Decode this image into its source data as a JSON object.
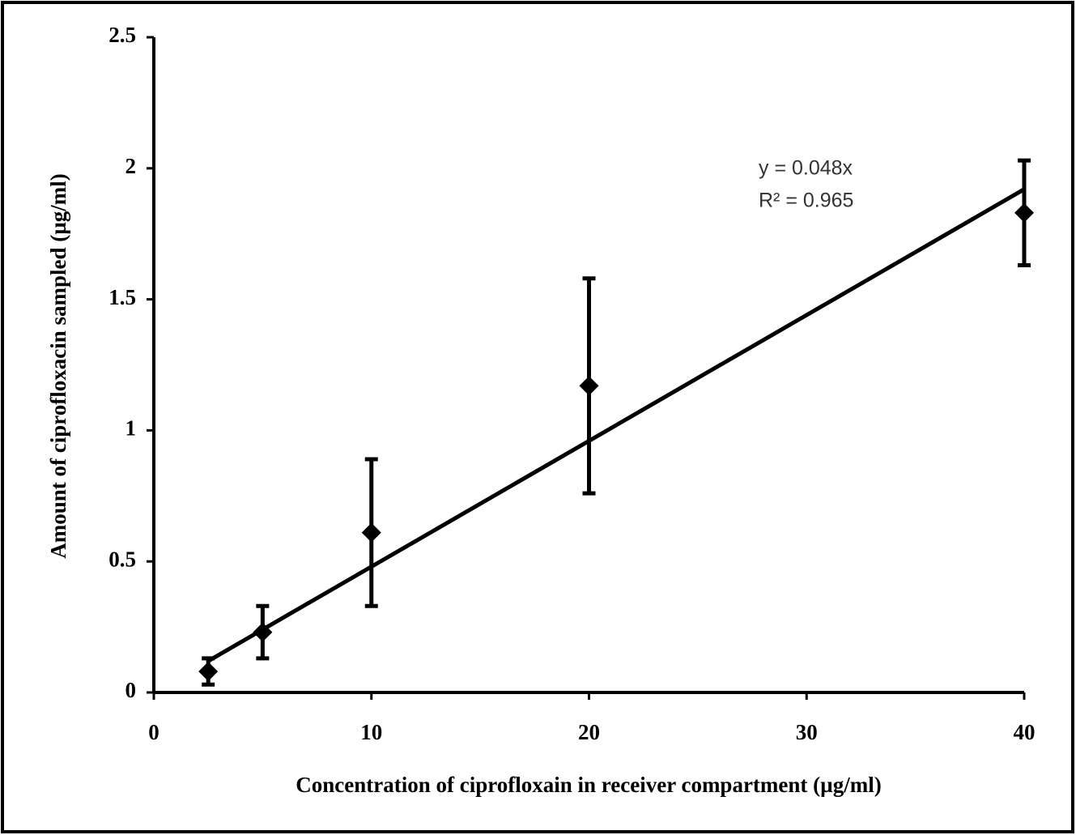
{
  "chart_data": {
    "type": "scatter",
    "x_label": "Concentration of ciprofloxain in receiver  compartment (µg/ml)",
    "y_label": "Amount of ciprofloxacin sampled (µg/ml)",
    "annotations": [
      "y = 0.048x",
      "R² = 0.965"
    ],
    "x": [
      2.5,
      5,
      10,
      20,
      40
    ],
    "series": [
      {
        "color": "#000000",
        "values": [
          0.08,
          0.23,
          0.61,
          1.17,
          1.83
        ],
        "errors": [
          0.05,
          0.1,
          0.28,
          0.41,
          0.2
        ]
      }
    ],
    "trendline": {
      "slope": 0.048
    },
    "xlim": [
      0,
      40
    ],
    "xticks": [
      0,
      10,
      20,
      30,
      40
    ],
    "ylim": [
      0,
      2.5
    ],
    "yticks": [
      0,
      0.5,
      1,
      1.5,
      2,
      2.5
    ]
  }
}
